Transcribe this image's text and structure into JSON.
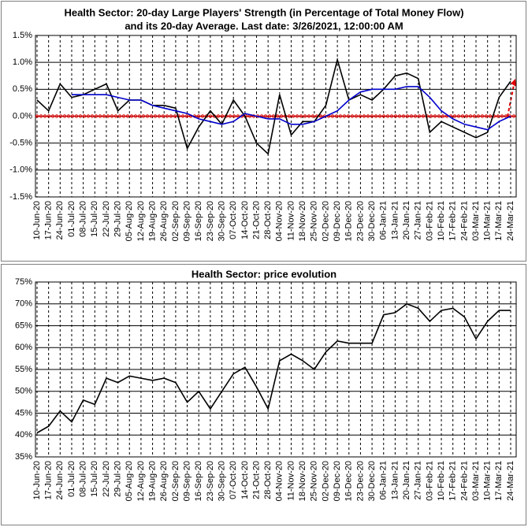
{
  "chart_data": [
    {
      "type": "line",
      "title": [
        "Health Sector: 20-day Large Players' Strength (in Percentage of Total Money Flow)",
        "and its 20-day Average. Last date: 3/26/2021, 12:00:00 AM"
      ],
      "categories": [
        "10-Jun-20",
        "17-Jun-20",
        "24-Jun-20",
        "01-Jul-20",
        "08-Jul-20",
        "15-Jul-20",
        "22-Jul-20",
        "29-Jul-20",
        "05-Aug-20",
        "12-Aug-20",
        "19-Aug-20",
        "26-Aug-20",
        "02-Sep-20",
        "09-Sep-20",
        "16-Sep-20",
        "23-Sep-20",
        "30-Sep-20",
        "07-Oct-20",
        "14-Oct-20",
        "21-Oct-20",
        "28-Oct-20",
        "04-Nov-20",
        "11-Nov-20",
        "18-Nov-20",
        "25-Nov-20",
        "02-Dec-20",
        "09-Dec-20",
        "16-Dec-20",
        "23-Dec-20",
        "30-Dec-20",
        "06-Jan-21",
        "13-Jan-21",
        "20-Jan-21",
        "27-Jan-21",
        "03-Feb-21",
        "10-Feb-21",
        "17-Feb-21",
        "24-Feb-21",
        "03-Mar-21",
        "10-Mar-21",
        "17-Mar-21",
        "24-Mar-21"
      ],
      "series": [
        {
          "color": "#000000",
          "values": [
            0.3,
            0.1,
            0.6,
            0.35,
            0.4,
            0.5,
            0.6,
            0.1,
            0.3,
            0.3,
            0.2,
            0.2,
            0.15,
            -0.6,
            -0.2,
            0.1,
            -0.15,
            0.3,
            0.0,
            -0.5,
            -0.7,
            0.4,
            -0.35,
            -0.1,
            -0.1,
            0.2,
            1.05,
            0.3,
            0.4,
            0.3,
            0.5,
            0.75,
            0.8,
            0.7,
            -0.3,
            -0.1,
            -0.2,
            -0.3,
            -0.4,
            -0.3,
            0.35,
            0.65
          ]
        },
        {
          "color": "#0000cc",
          "values": [
            null,
            null,
            null,
            0.4,
            0.4,
            0.4,
            0.4,
            0.35,
            0.3,
            0.3,
            0.2,
            0.15,
            0.1,
            0.05,
            -0.05,
            -0.1,
            -0.15,
            -0.1,
            0.05,
            0.0,
            -0.05,
            -0.05,
            -0.15,
            -0.15,
            -0.1,
            0.0,
            0.1,
            0.3,
            0.45,
            0.5,
            0.5,
            0.5,
            0.55,
            0.55,
            0.35,
            0.1,
            -0.05,
            -0.15,
            -0.2,
            -0.25,
            -0.1,
            0.0
          ]
        }
      ],
      "reference_line": {
        "y": 0,
        "color": "#cc0000"
      },
      "ylim": [
        -1.5,
        1.5
      ],
      "yticks": [
        {
          "value": -1.5,
          "label": "-1.5%"
        },
        {
          "value": -1.0,
          "label": "-1.0%"
        },
        {
          "value": -0.5,
          "label": "-0.5%"
        },
        {
          "value": 0,
          "label": "0.0%"
        },
        {
          "value": 0.5,
          "label": "0.5%"
        },
        {
          "value": 1.0,
          "label": "1.0%"
        },
        {
          "value": 1.5,
          "label": "1.5%"
        }
      ],
      "grid": true
    },
    {
      "type": "line",
      "title": [
        "Health Sector: price evolution"
      ],
      "categories": [
        "10-Jun-20",
        "17-Jun-20",
        "24-Jun-20",
        "01-Jul-20",
        "08-Jul-20",
        "15-Jul-20",
        "22-Jul-20",
        "29-Jul-20",
        "05-Aug-20",
        "12-Aug-20",
        "19-Aug-20",
        "26-Aug-20",
        "02-Sep-20",
        "09-Sep-20",
        "16-Sep-20",
        "23-Sep-20",
        "30-Sep-20",
        "07-Oct-20",
        "14-Oct-20",
        "21-Oct-20",
        "28-Oct-20",
        "04-Nov-20",
        "11-Nov-20",
        "18-Nov-20",
        "25-Nov-20",
        "02-Dec-20",
        "09-Dec-20",
        "16-Dec-20",
        "23-Dec-20",
        "30-Dec-20",
        "06-Jan-21",
        "13-Jan-21",
        "20-Jan-21",
        "27-Jan-21",
        "03-Feb-21",
        "10-Feb-21",
        "17-Feb-21",
        "24-Feb-21",
        "03-Mar-21",
        "10-Mar-21",
        "17-Mar-21",
        "24-Mar-21"
      ],
      "series": [
        {
          "color": "#000000",
          "values": [
            40.5,
            42,
            45.5,
            43,
            48,
            47,
            53,
            52,
            53.5,
            53,
            52.5,
            53,
            52,
            47.5,
            50,
            46,
            50,
            54,
            55.5,
            51,
            46,
            57,
            58.5,
            57,
            55,
            59,
            61.5,
            61,
            61,
            61,
            67.5,
            68,
            70,
            69,
            66,
            68.5,
            69,
            67,
            62,
            66,
            68.5,
            68.5
          ]
        }
      ],
      "ylim": [
        35,
        75
      ],
      "yticks": [
        {
          "value": 35,
          "label": "35%"
        },
        {
          "value": 40,
          "label": "40%"
        },
        {
          "value": 45,
          "label": "45%"
        },
        {
          "value": 50,
          "label": "50%"
        },
        {
          "value": 55,
          "label": "55%"
        },
        {
          "value": 60,
          "label": "60%"
        },
        {
          "value": 65,
          "label": "65%"
        },
        {
          "value": 70,
          "label": "70%"
        },
        {
          "value": 75,
          "label": "75%"
        }
      ],
      "grid": true
    }
  ]
}
